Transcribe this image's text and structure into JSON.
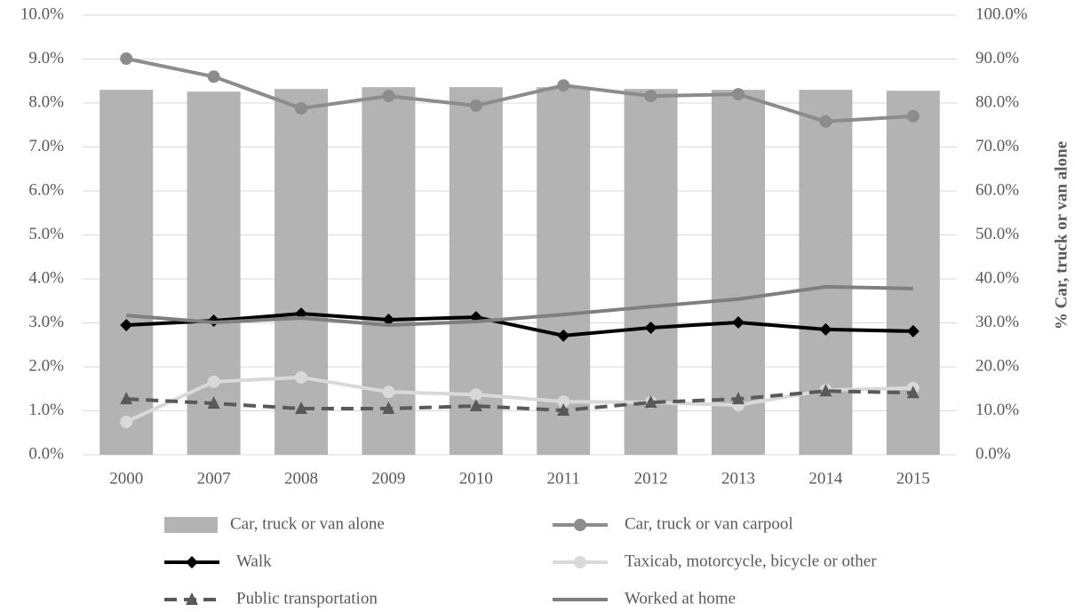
{
  "chart_data": {
    "type": "combo",
    "categories": [
      "2000",
      "2007",
      "2008",
      "2009",
      "2010",
      "2011",
      "2012",
      "2013",
      "2014",
      "2015"
    ],
    "ylim": [
      0,
      10
    ],
    "yticks": [
      {
        "value": 0,
        "label": "0.0%"
      },
      {
        "value": 1,
        "label": "1.0%"
      },
      {
        "value": 2,
        "label": "2.0%"
      },
      {
        "value": 3,
        "label": "3.0%"
      },
      {
        "value": 4,
        "label": "4.0%"
      },
      {
        "value": 5,
        "label": "5.0%"
      },
      {
        "value": 6,
        "label": "6.0%"
      },
      {
        "value": 7,
        "label": "7.0%"
      },
      {
        "value": 8,
        "label": "8.0%"
      },
      {
        "value": 9,
        "label": "9.0%"
      },
      {
        "value": 10,
        "label": "10.0%"
      }
    ],
    "y2lim": [
      0,
      100
    ],
    "y2ticks": [
      {
        "value": 0,
        "label": "0.0%"
      },
      {
        "value": 10,
        "label": "10.0%"
      },
      {
        "value": 20,
        "label": "20.0%"
      },
      {
        "value": 30,
        "label": "30.0%"
      },
      {
        "value": 40,
        "label": "40.0%"
      },
      {
        "value": 50,
        "label": "50.0%"
      },
      {
        "value": 60,
        "label": "60.0%"
      },
      {
        "value": 70,
        "label": "70.0%"
      },
      {
        "value": 80,
        "label": "80.0%"
      },
      {
        "value": 90,
        "label": "90.0%"
      },
      {
        "value": 100,
        "label": "100.0%"
      }
    ],
    "y2label": "% Car, truck or van alone",
    "grid": true,
    "series": [
      {
        "name": "Car, truck or van alone",
        "type": "bar",
        "axis": "y2",
        "color": "#b3b3b3",
        "values": [
          83.0,
          82.6,
          83.2,
          83.6,
          83.6,
          83.6,
          83.2,
          83.0,
          83.0,
          82.8
        ]
      },
      {
        "name": "Car, truck or van carpool",
        "type": "line",
        "marker": "circle",
        "color": "#8c8c8c",
        "values": [
          9.01,
          8.6,
          7.88,
          8.16,
          7.94,
          8.4,
          8.16,
          8.2,
          7.58,
          7.7
        ]
      },
      {
        "name": "Walk",
        "type": "line",
        "marker": "diamond",
        "color": "#000000",
        "values": [
          2.95,
          3.05,
          3.21,
          3.07,
          3.13,
          2.71,
          2.89,
          3.01,
          2.85,
          2.81
        ]
      },
      {
        "name": "Taxicab, motorcycle, bicycle or other",
        "type": "line",
        "marker": "circle",
        "color": "#d9d9d9",
        "values": [
          0.75,
          1.66,
          1.76,
          1.43,
          1.37,
          1.21,
          1.19,
          1.13,
          1.47,
          1.52
        ]
      },
      {
        "name": "Public transportation",
        "type": "line",
        "marker": "triangle",
        "dashed": true,
        "color": "#595959",
        "values": [
          1.27,
          1.17,
          1.05,
          1.05,
          1.11,
          1.01,
          1.19,
          1.27,
          1.45,
          1.41
        ]
      },
      {
        "name": "Worked at home",
        "type": "line",
        "color": "#7f7f7f",
        "values": [
          3.17,
          3.01,
          3.11,
          2.95,
          3.03,
          3.19,
          3.37,
          3.54,
          3.82,
          3.78
        ]
      }
    ]
  }
}
